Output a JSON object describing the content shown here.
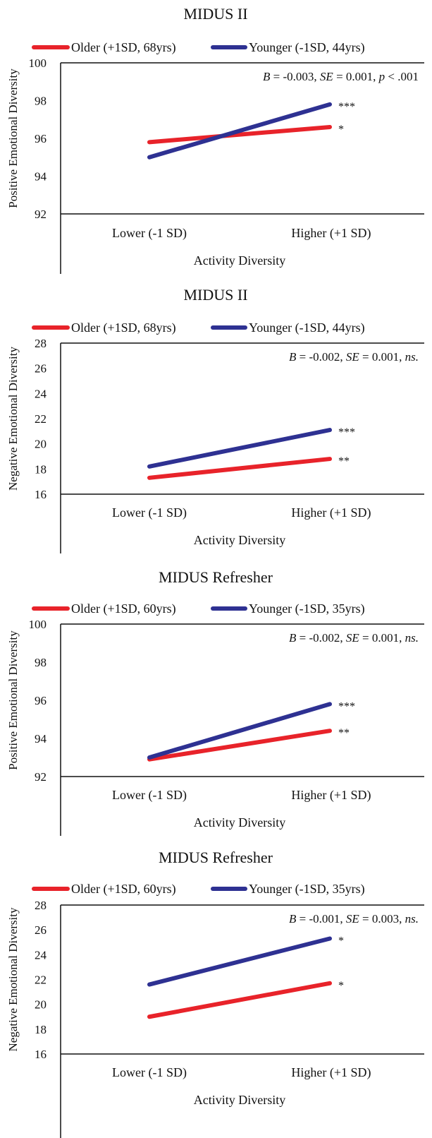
{
  "chart_data": [
    {
      "type": "line",
      "title": "MIDUS II",
      "xlabel": "Activity Diversity",
      "ylabel": "Positive Emotional Diversity",
      "categories": [
        "Lower (-1 SD)",
        "Higher (+1 SD)"
      ],
      "ylim": [
        92,
        100
      ],
      "yticks": [
        92,
        94,
        96,
        98,
        100
      ],
      "series": [
        {
          "name": "Older (+1SD, 68yrs)",
          "values": [
            95.8,
            96.6
          ],
          "color": "#e8232a",
          "sig": "*"
        },
        {
          "name": "Younger (-1SD, 44yrs)",
          "values": [
            95.0,
            97.8
          ],
          "color": "#2e3192",
          "sig": "***"
        }
      ],
      "stat": {
        "b": "B",
        "b_val": " = -0.003,  ",
        "se": "SE",
        "se_val": " = 0.001,  ",
        "p": "p",
        "p_val": " < .001"
      },
      "grid": false
    },
    {
      "type": "line",
      "title": "MIDUS II",
      "xlabel": "Activity Diversity",
      "ylabel": "Negative Emotional Diversity",
      "categories": [
        "Lower (-1 SD)",
        "Higher (+1 SD)"
      ],
      "ylim": [
        16,
        28
      ],
      "yticks": [
        16,
        18,
        20,
        22,
        24,
        26,
        28
      ],
      "series": [
        {
          "name": "Older (+1SD, 68yrs)",
          "values": [
            17.3,
            18.8
          ],
          "color": "#e8232a",
          "sig": "**"
        },
        {
          "name": "Younger (-1SD, 44yrs)",
          "values": [
            18.2,
            21.1
          ],
          "color": "#2e3192",
          "sig": "***"
        }
      ],
      "stat": {
        "b": "B",
        "b_val": " = -0.002,  ",
        "se": "SE",
        "se_val": " = 0.001,  ",
        "p": "ns.",
        "p_val": ""
      },
      "grid": false
    },
    {
      "type": "line",
      "title": "MIDUS Refresher",
      "xlabel": "Activity Diversity",
      "ylabel": "Positive Emotional Diversity",
      "categories": [
        "Lower (-1 SD)",
        "Higher (+1 SD)"
      ],
      "ylim": [
        92,
        100
      ],
      "yticks": [
        92,
        94,
        96,
        98,
        100
      ],
      "series": [
        {
          "name": "Older (+1SD, 60yrs)",
          "values": [
            92.9,
            94.4
          ],
          "color": "#e8232a",
          "sig": "**"
        },
        {
          "name": "Younger (-1SD, 35yrs)",
          "values": [
            93.0,
            95.8
          ],
          "color": "#2e3192",
          "sig": "***"
        }
      ],
      "stat": {
        "b": "B",
        "b_val": " = -0.002,  ",
        "se": "SE",
        "se_val": " = 0.001,  ",
        "p": "ns.",
        "p_val": ""
      },
      "grid": false
    },
    {
      "type": "line",
      "title": "MIDUS Refresher",
      "xlabel": "Activity Diversity",
      "ylabel": "Negative Emotional Diversity",
      "categories": [
        "Lower (-1 SD)",
        "Higher (+1 SD)"
      ],
      "ylim": [
        16,
        28
      ],
      "yticks": [
        16,
        18,
        20,
        22,
        24,
        26,
        28
      ],
      "series": [
        {
          "name": "Older (+1SD, 60yrs)",
          "values": [
            19.0,
            21.7
          ],
          "color": "#e8232a",
          "sig": "*"
        },
        {
          "name": "Younger (-1SD, 35yrs)",
          "values": [
            21.6,
            25.3
          ],
          "color": "#2e3192",
          "sig": "*"
        }
      ],
      "stat": {
        "b": "B",
        "b_val": " = -0.001,  ",
        "se": "SE",
        "se_val": " = 0.003,  ",
        "p": "ns.",
        "p_val": ""
      },
      "grid": false
    }
  ]
}
